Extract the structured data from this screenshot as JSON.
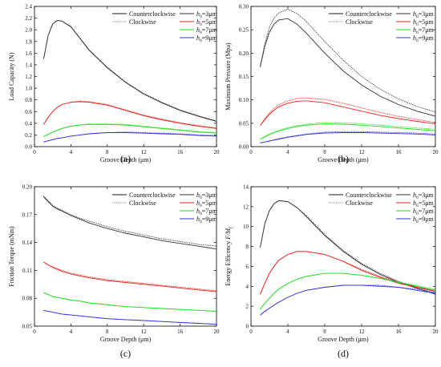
{
  "colors": {
    "ccw": "#1a1a1a",
    "cw": "#888888",
    "h3": "#333333",
    "h5": "#e8231f",
    "h7": "#1cdc1c",
    "h9": "#3232dc"
  },
  "legend": {
    "counterclockwise": "Counterclockwise",
    "clockwise": "Clockwise",
    "h_entries": [
      {
        "prefix": "h",
        "sub": "0",
        "rest": "=3μm",
        "color_key": "h3"
      },
      {
        "prefix": "h",
        "sub": "0",
        "rest": "=5μm",
        "color_key": "h5"
      },
      {
        "prefix": "h",
        "sub": "0",
        "rest": "=7μm",
        "color_key": "h7"
      },
      {
        "prefix": "h",
        "sub": "0",
        "rest": "=9μm",
        "color_key": "h9"
      }
    ]
  },
  "chart_data": [
    {
      "panel": "(a)",
      "type": "line",
      "xlabel": "Groove Depth (μm)",
      "ylabel": "Load Capacity (N)",
      "xlim": [
        0,
        20
      ],
      "ylim": [
        0,
        2.4
      ],
      "xticks": [
        "0",
        "4",
        "8",
        "12",
        "16",
        "20"
      ],
      "yticks": [
        "0.0",
        "0.2",
        "0.4",
        "0.6",
        "0.8",
        "1.0",
        "1.2",
        "1.4",
        "1.6",
        "1.8",
        "2.0",
        "2.2",
        "2.4"
      ],
      "x": [
        1,
        1.5,
        2,
        2.5,
        3,
        4,
        5,
        6,
        8,
        10,
        12,
        14,
        16,
        18,
        20
      ],
      "series": [
        {
          "name": "h0=3μm",
          "color_key": "h3",
          "ccw": [
            1.5,
            1.9,
            2.1,
            2.16,
            2.15,
            2.05,
            1.85,
            1.65,
            1.35,
            1.1,
            0.9,
            0.75,
            0.62,
            0.52,
            0.43
          ],
          "cw": [
            1.5,
            1.9,
            2.1,
            2.16,
            2.15,
            2.06,
            1.86,
            1.66,
            1.36,
            1.11,
            0.91,
            0.76,
            0.63,
            0.53,
            0.44
          ]
        },
        {
          "name": "h0=5μm",
          "color_key": "h5",
          "ccw": [
            0.38,
            0.5,
            0.6,
            0.67,
            0.72,
            0.76,
            0.77,
            0.76,
            0.71,
            0.62,
            0.53,
            0.46,
            0.4,
            0.35,
            0.31
          ],
          "cw": [
            0.38,
            0.5,
            0.6,
            0.67,
            0.72,
            0.76,
            0.78,
            0.77,
            0.72,
            0.63,
            0.54,
            0.47,
            0.41,
            0.36,
            0.32
          ]
        },
        {
          "name": "h0=7μm",
          "color_key": "h7",
          "ccw": [
            0.17,
            0.21,
            0.25,
            0.28,
            0.31,
            0.35,
            0.37,
            0.38,
            0.38,
            0.37,
            0.34,
            0.31,
            0.28,
            0.25,
            0.23
          ],
          "cw": [
            0.17,
            0.21,
            0.25,
            0.28,
            0.31,
            0.35,
            0.37,
            0.39,
            0.39,
            0.38,
            0.35,
            0.32,
            0.29,
            0.26,
            0.24
          ]
        },
        {
          "name": "h0=9μm",
          "color_key": "h9",
          "ccw": [
            0.08,
            0.1,
            0.12,
            0.14,
            0.15,
            0.18,
            0.2,
            0.22,
            0.24,
            0.24,
            0.23,
            0.22,
            0.21,
            0.19,
            0.18
          ],
          "cw": [
            0.08,
            0.1,
            0.12,
            0.14,
            0.15,
            0.18,
            0.2,
            0.22,
            0.24,
            0.25,
            0.24,
            0.23,
            0.22,
            0.2,
            0.19
          ]
        }
      ]
    },
    {
      "panel": "(b)",
      "type": "line",
      "xlabel": "Groove Depth (μm)",
      "ylabel": "Maximum Pressure (Mpa)",
      "xlim": [
        0,
        20
      ],
      "ylim": [
        0,
        0.3
      ],
      "xticks": [
        "0",
        "4",
        "8",
        "12",
        "16",
        "20"
      ],
      "yticks": [
        "0.00",
        "0.05",
        "0.10",
        "0.15",
        "0.20",
        "0.25",
        "0.30"
      ],
      "x": [
        1,
        1.5,
        2,
        2.5,
        3,
        4,
        5,
        6,
        8,
        10,
        12,
        14,
        16,
        18,
        20
      ],
      "series": [
        {
          "name": "h0=3μm",
          "color_key": "h3",
          "ccw": [
            0.17,
            0.215,
            0.245,
            0.262,
            0.271,
            0.274,
            0.262,
            0.243,
            0.2,
            0.162,
            0.132,
            0.108,
            0.09,
            0.076,
            0.065
          ],
          "cw": [
            0.172,
            0.22,
            0.255,
            0.275,
            0.286,
            0.294,
            0.285,
            0.268,
            0.225,
            0.185,
            0.15,
            0.123,
            0.102,
            0.086,
            0.074
          ]
        },
        {
          "name": "h0=5μm",
          "color_key": "h5",
          "ccw": [
            0.045,
            0.058,
            0.069,
            0.078,
            0.085,
            0.093,
            0.097,
            0.098,
            0.094,
            0.085,
            0.076,
            0.067,
            0.06,
            0.054,
            0.049
          ],
          "cw": [
            0.045,
            0.06,
            0.072,
            0.082,
            0.089,
            0.098,
            0.103,
            0.104,
            0.101,
            0.093,
            0.083,
            0.073,
            0.065,
            0.058,
            0.052
          ]
        },
        {
          "name": "h0=7μm",
          "color_key": "h7",
          "ccw": [
            0.016,
            0.021,
            0.026,
            0.03,
            0.033,
            0.039,
            0.043,
            0.046,
            0.049,
            0.048,
            0.046,
            0.043,
            0.04,
            0.037,
            0.034
          ],
          "cw": [
            0.016,
            0.022,
            0.027,
            0.031,
            0.035,
            0.041,
            0.045,
            0.048,
            0.052,
            0.051,
            0.049,
            0.046,
            0.043,
            0.04,
            0.037
          ]
        },
        {
          "name": "h0=9μm",
          "color_key": "h9",
          "ccw": [
            0.008,
            0.01,
            0.012,
            0.014,
            0.016,
            0.02,
            0.023,
            0.026,
            0.029,
            0.03,
            0.03,
            0.029,
            0.028,
            0.027,
            0.025
          ],
          "cw": [
            0.008,
            0.01,
            0.012,
            0.015,
            0.017,
            0.021,
            0.024,
            0.027,
            0.031,
            0.032,
            0.032,
            0.031,
            0.03,
            0.029,
            0.027
          ]
        }
      ]
    },
    {
      "panel": "(c)",
      "type": "line",
      "xlabel": "Groove Depth (μm)",
      "ylabel": "Friction Torque (mNm)",
      "xlim": [
        0,
        20
      ],
      "ylim": [
        0.05,
        0.2
      ],
      "xticks": [
        "0",
        "4",
        "8",
        "12",
        "16",
        "20"
      ],
      "yticks": [
        "0.05",
        "0.08",
        "0.11",
        "0.14",
        "0.17",
        "0.20"
      ],
      "x": [
        1,
        1.5,
        2,
        2.5,
        3,
        4,
        5,
        6,
        8,
        10,
        12,
        14,
        16,
        18,
        20
      ],
      "series": [
        {
          "name": "h0=3μm",
          "color_key": "h3",
          "ccw": [
            0.189,
            0.184,
            0.179,
            0.176,
            0.174,
            0.169,
            0.165,
            0.161,
            0.155,
            0.15,
            0.146,
            0.142,
            0.139,
            0.136,
            0.133
          ],
          "cw": [
            0.19,
            0.185,
            0.18,
            0.177,
            0.175,
            0.17,
            0.166,
            0.163,
            0.157,
            0.152,
            0.148,
            0.144,
            0.141,
            0.138,
            0.136
          ]
        },
        {
          "name": "h0=5μm",
          "color_key": "h5",
          "ccw": [
            0.119,
            0.116,
            0.113,
            0.111,
            0.109,
            0.106,
            0.104,
            0.102,
            0.099,
            0.097,
            0.095,
            0.093,
            0.091,
            0.089,
            0.087
          ],
          "cw": [
            0.119,
            0.116,
            0.114,
            0.112,
            0.11,
            0.107,
            0.105,
            0.103,
            0.1,
            0.098,
            0.096,
            0.094,
            0.092,
            0.09,
            0.088
          ]
        },
        {
          "name": "h0=7μm",
          "color_key": "h7",
          "ccw": [
            0.086,
            0.084,
            0.082,
            0.081,
            0.08,
            0.078,
            0.077,
            0.075,
            0.073,
            0.071,
            0.07,
            0.069,
            0.068,
            0.067,
            0.066
          ],
          "cw": [
            0.086,
            0.084,
            0.082,
            0.081,
            0.08,
            0.078,
            0.077,
            0.075,
            0.073,
            0.071,
            0.07,
            0.069,
            0.068,
            0.067,
            0.066
          ]
        },
        {
          "name": "h0=9μm",
          "color_key": "h9",
          "ccw": [
            0.067,
            0.066,
            0.065,
            0.064,
            0.063,
            0.062,
            0.061,
            0.06,
            0.058,
            0.057,
            0.056,
            0.055,
            0.054,
            0.053,
            0.052
          ],
          "cw": [
            0.067,
            0.066,
            0.065,
            0.064,
            0.063,
            0.062,
            0.061,
            0.06,
            0.058,
            0.057,
            0.056,
            0.055,
            0.054,
            0.053,
            0.052
          ]
        }
      ]
    },
    {
      "panel": "(d)",
      "type": "line",
      "xlabel": "Groove Depth (μm)",
      "ylabel_prefix": "Energy Efficency ",
      "ylabel_italic": "F/M",
      "ylabel_sub": "f",
      "xlim": [
        0,
        20
      ],
      "ylim": [
        0,
        14
      ],
      "xticks": [
        "0",
        "4",
        "8",
        "12",
        "16",
        "20"
      ],
      "yticks": [
        "0",
        "2",
        "4",
        "6",
        "8",
        "10",
        "12",
        "14"
      ],
      "x": [
        1,
        1.5,
        2,
        2.5,
        3,
        4,
        5,
        6,
        8,
        10,
        12,
        14,
        16,
        18,
        20
      ],
      "series": [
        {
          "name": "h0=3μm",
          "color_key": "h3",
          "ccw": [
            7.9,
            10.3,
            11.6,
            12.3,
            12.6,
            12.5,
            11.9,
            11.0,
            9.1,
            7.5,
            6.2,
            5.2,
            4.4,
            3.8,
            3.2
          ],
          "cw": [
            7.9,
            10.3,
            11.6,
            12.3,
            12.6,
            12.5,
            11.9,
            11.1,
            9.2,
            7.6,
            6.3,
            5.3,
            4.5,
            3.9,
            3.3
          ]
        },
        {
          "name": "h0=5μm",
          "color_key": "h5",
          "ccw": [
            3.2,
            4.3,
            5.3,
            6.0,
            6.6,
            7.2,
            7.5,
            7.5,
            7.2,
            6.5,
            5.6,
            4.9,
            4.3,
            3.9,
            3.5
          ],
          "cw": [
            3.2,
            4.3,
            5.3,
            6.0,
            6.6,
            7.2,
            7.5,
            7.5,
            7.2,
            6.5,
            5.7,
            5.0,
            4.4,
            3.9,
            3.6
          ]
        },
        {
          "name": "h0=7μm",
          "color_key": "h7",
          "ccw": [
            1.7,
            2.3,
            2.8,
            3.3,
            3.7,
            4.3,
            4.7,
            5.0,
            5.3,
            5.3,
            5.1,
            4.8,
            4.4,
            4.0,
            3.6
          ],
          "cw": [
            1.7,
            2.3,
            2.8,
            3.3,
            3.7,
            4.3,
            4.7,
            5.0,
            5.3,
            5.3,
            5.1,
            4.8,
            4.4,
            4.1,
            3.7
          ]
        },
        {
          "name": "h0=9μm",
          "color_key": "h9",
          "ccw": [
            1.1,
            1.5,
            1.8,
            2.1,
            2.4,
            2.9,
            3.3,
            3.6,
            3.9,
            4.1,
            4.1,
            4.0,
            3.9,
            3.6,
            3.3
          ],
          "cw": [
            1.1,
            1.5,
            1.8,
            2.1,
            2.4,
            2.9,
            3.3,
            3.6,
            3.9,
            4.1,
            4.1,
            4.1,
            3.9,
            3.7,
            3.4
          ]
        }
      ]
    }
  ]
}
